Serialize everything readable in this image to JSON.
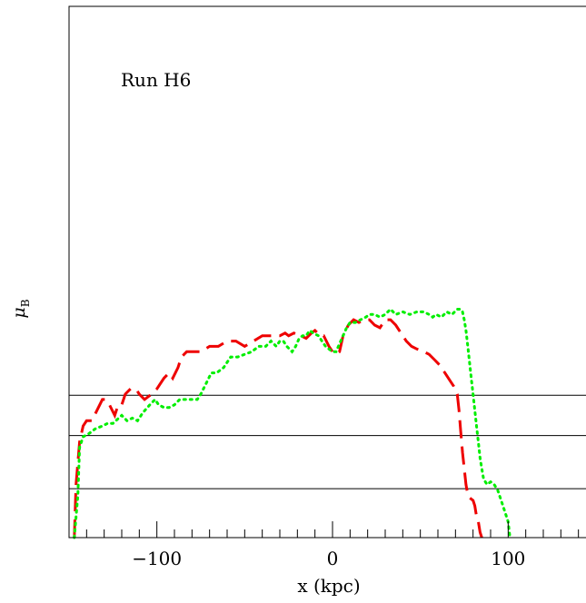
{
  "chart_data": {
    "type": "line",
    "annotation": "Run H6",
    "xlabel": "x (kpc)",
    "ylabel": {
      "main": "μ",
      "sub": "B"
    },
    "xlim": [
      -150,
      150
    ],
    "ylim": [
      0,
      1
    ],
    "x_ticks": [
      -100,
      0,
      100
    ],
    "x_tick_labels": [
      "−100",
      "0",
      "100"
    ],
    "x_minor_step": 10,
    "grid": false,
    "horizontal_levels": [
      0.268,
      0.192,
      0.092
    ],
    "colors": {
      "red": "#ee0000",
      "green": "#00ee00",
      "axis": "#000000"
    },
    "series": [
      {
        "color": "red",
        "dash": "long-dash",
        "points": [
          [
            -147,
            0.0
          ],
          [
            -146,
            0.1
          ],
          [
            -144,
            0.18
          ],
          [
            -142,
            0.21
          ],
          [
            -140,
            0.22
          ],
          [
            -137,
            0.22
          ],
          [
            -134,
            0.24
          ],
          [
            -131,
            0.26
          ],
          [
            -129,
            0.26
          ],
          [
            -127,
            0.25
          ],
          [
            -124,
            0.23
          ],
          [
            -122,
            0.25
          ],
          [
            -120,
            0.25
          ],
          [
            -118,
            0.27
          ],
          [
            -115,
            0.28
          ],
          [
            -112,
            0.28
          ],
          [
            -110,
            0.27
          ],
          [
            -107,
            0.26
          ],
          [
            -103,
            0.27
          ],
          [
            -100,
            0.28
          ],
          [
            -96,
            0.3
          ],
          [
            -93,
            0.31
          ],
          [
            -91,
            0.3
          ],
          [
            -88,
            0.32
          ],
          [
            -86,
            0.34
          ],
          [
            -83,
            0.35
          ],
          [
            -78,
            0.35
          ],
          [
            -75,
            0.35
          ],
          [
            -70,
            0.36
          ],
          [
            -65,
            0.36
          ],
          [
            -60,
            0.37
          ],
          [
            -55,
            0.37
          ],
          [
            -50,
            0.36
          ],
          [
            -45,
            0.37
          ],
          [
            -40,
            0.38
          ],
          [
            -35,
            0.38
          ],
          [
            -30,
            0.38
          ],
          [
            -27,
            0.385
          ],
          [
            -25,
            0.38
          ],
          [
            -22,
            0.385
          ],
          [
            -18,
            0.38
          ],
          [
            -15,
            0.375
          ],
          [
            -12,
            0.385
          ],
          [
            -10,
            0.39
          ],
          [
            -7,
            0.38
          ],
          [
            -5,
            0.38
          ],
          [
            -2,
            0.36
          ],
          [
            0,
            0.35
          ],
          [
            2,
            0.345
          ],
          [
            4,
            0.35
          ],
          [
            6,
            0.38
          ],
          [
            9,
            0.4
          ],
          [
            12,
            0.41
          ],
          [
            15,
            0.405
          ],
          [
            18,
            0.41
          ],
          [
            21,
            0.41
          ],
          [
            24,
            0.4
          ],
          [
            27,
            0.395
          ],
          [
            30,
            0.41
          ],
          [
            33,
            0.41
          ],
          [
            36,
            0.4
          ],
          [
            39,
            0.385
          ],
          [
            42,
            0.37
          ],
          [
            45,
            0.36
          ],
          [
            48,
            0.355
          ],
          [
            52,
            0.35
          ],
          [
            55,
            0.345
          ],
          [
            58,
            0.335
          ],
          [
            61,
            0.325
          ],
          [
            64,
            0.31
          ],
          [
            67,
            0.295
          ],
          [
            69,
            0.285
          ],
          [
            71,
            0.27
          ],
          [
            72,
            0.24
          ],
          [
            73,
            0.2
          ],
          [
            74,
            0.16
          ],
          [
            75,
            0.13
          ],
          [
            76,
            0.1
          ],
          [
            77,
            0.08
          ],
          [
            78,
            0.075
          ],
          [
            80,
            0.07
          ],
          [
            81,
            0.06
          ],
          [
            82,
            0.04
          ],
          [
            83,
            0.03
          ],
          [
            84,
            0.01
          ],
          [
            85,
            0.0
          ]
        ]
      },
      {
        "color": "green",
        "dash": "dotted",
        "points": [
          [
            -147,
            0.0
          ],
          [
            -145,
            0.08
          ],
          [
            -144,
            0.17
          ],
          [
            -142,
            0.19
          ],
          [
            -139,
            0.195
          ],
          [
            -135,
            0.205
          ],
          [
            -131,
            0.21
          ],
          [
            -128,
            0.215
          ],
          [
            -125,
            0.215
          ],
          [
            -120,
            0.23
          ],
          [
            -117,
            0.22
          ],
          [
            -114,
            0.225
          ],
          [
            -111,
            0.22
          ],
          [
            -108,
            0.235
          ],
          [
            -104,
            0.25
          ],
          [
            -101,
            0.26
          ],
          [
            -99,
            0.25
          ],
          [
            -96,
            0.245
          ],
          [
            -93,
            0.245
          ],
          [
            -90,
            0.25
          ],
          [
            -87,
            0.26
          ],
          [
            -84,
            0.26
          ],
          [
            -80,
            0.26
          ],
          [
            -77,
            0.26
          ],
          [
            -75,
            0.27
          ],
          [
            -72,
            0.29
          ],
          [
            -69,
            0.31
          ],
          [
            -66,
            0.31
          ],
          [
            -62,
            0.32
          ],
          [
            -58,
            0.34
          ],
          [
            -54,
            0.34
          ],
          [
            -50,
            0.345
          ],
          [
            -46,
            0.35
          ],
          [
            -42,
            0.36
          ],
          [
            -38,
            0.36
          ],
          [
            -35,
            0.37
          ],
          [
            -32,
            0.36
          ],
          [
            -30,
            0.37
          ],
          [
            -28,
            0.37
          ],
          [
            -26,
            0.36
          ],
          [
            -23,
            0.35
          ],
          [
            -21,
            0.36
          ],
          [
            -19,
            0.375
          ],
          [
            -17,
            0.38
          ],
          [
            -15,
            0.38
          ],
          [
            -13,
            0.39
          ],
          [
            -11,
            0.385
          ],
          [
            -8,
            0.38
          ],
          [
            -6,
            0.37
          ],
          [
            -4,
            0.36
          ],
          [
            -2,
            0.355
          ],
          [
            0,
            0.35
          ],
          [
            2,
            0.35
          ],
          [
            4,
            0.365
          ],
          [
            6,
            0.38
          ],
          [
            8,
            0.395
          ],
          [
            10,
            0.405
          ],
          [
            13,
            0.405
          ],
          [
            16,
            0.41
          ],
          [
            19,
            0.415
          ],
          [
            21,
            0.42
          ],
          [
            24,
            0.42
          ],
          [
            27,
            0.415
          ],
          [
            30,
            0.42
          ],
          [
            33,
            0.43
          ],
          [
            36,
            0.42
          ],
          [
            40,
            0.425
          ],
          [
            44,
            0.42
          ],
          [
            48,
            0.425
          ],
          [
            52,
            0.425
          ],
          [
            55,
            0.42
          ],
          [
            57,
            0.415
          ],
          [
            59,
            0.42
          ],
          [
            62,
            0.415
          ],
          [
            65,
            0.425
          ],
          [
            68,
            0.42
          ],
          [
            71,
            0.43
          ],
          [
            73,
            0.43
          ],
          [
            74,
            0.425
          ],
          [
            75,
            0.41
          ],
          [
            76,
            0.39
          ],
          [
            77,
            0.36
          ],
          [
            78,
            0.33
          ],
          [
            79,
            0.3
          ],
          [
            80,
            0.27
          ],
          [
            81,
            0.24
          ],
          [
            82,
            0.21
          ],
          [
            83,
            0.18
          ],
          [
            84,
            0.15
          ],
          [
            85,
            0.13
          ],
          [
            86,
            0.11
          ],
          [
            88,
            0.1
          ],
          [
            90,
            0.105
          ],
          [
            92,
            0.1
          ],
          [
            94,
            0.09
          ],
          [
            96,
            0.07
          ],
          [
            98,
            0.05
          ],
          [
            100,
            0.03
          ],
          [
            101,
            0.0
          ]
        ]
      }
    ]
  }
}
